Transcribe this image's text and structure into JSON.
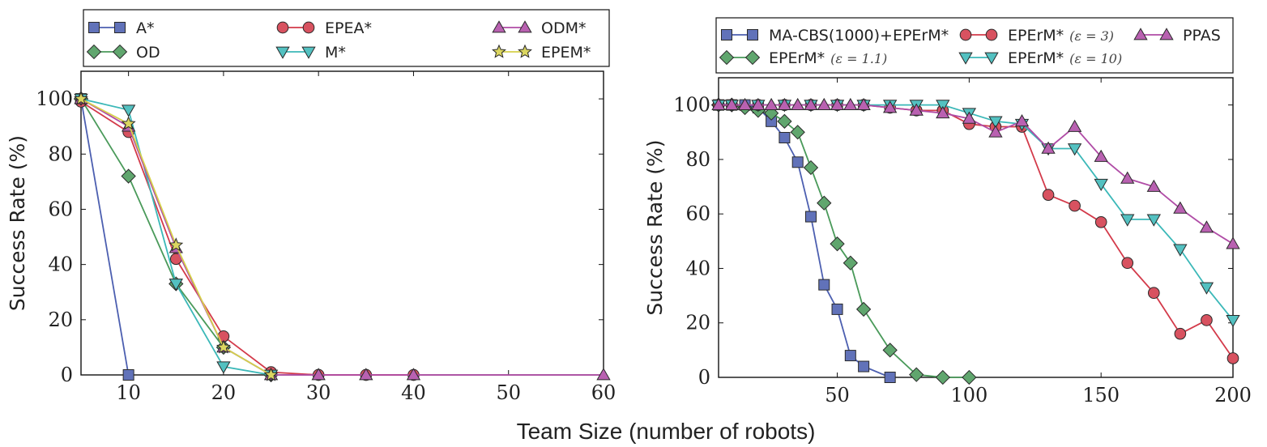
{
  "xlabel": "Team Size (number of robots)",
  "chart_data": [
    {
      "type": "line",
      "ylabel": "Success Rate (%)",
      "xlim": [
        5,
        60
      ],
      "ylim": [
        0,
        110
      ],
      "xticks": [
        10,
        20,
        30,
        40,
        50,
        60
      ],
      "yticks": [
        0,
        20,
        40,
        60,
        80,
        100
      ],
      "grid": false,
      "legend_position": "top",
      "series": [
        {
          "name": "A*",
          "color": "#4c5fb0",
          "marker": "square",
          "x": [
            5,
            10
          ],
          "values": [
            100,
            0
          ]
        },
        {
          "name": "OD",
          "color": "#4a9a5a",
          "marker": "diamond",
          "x": [
            5,
            10,
            15,
            20,
            25
          ],
          "values": [
            100,
            72,
            33,
            10,
            0
          ]
        },
        {
          "name": "EPEA*",
          "color": "#d33a4a",
          "marker": "circle",
          "x": [
            5,
            10,
            15,
            20,
            25,
            30,
            35,
            40
          ],
          "values": [
            99,
            88,
            42,
            14,
            1,
            0,
            0,
            0
          ]
        },
        {
          "name": "M*",
          "color": "#3bb8b8",
          "marker": "triangle-down",
          "x": [
            5,
            10,
            15,
            20,
            25
          ],
          "values": [
            100,
            96,
            33,
            3,
            0
          ]
        },
        {
          "name": "ODM*",
          "color": "#b04ca6",
          "marker": "triangle-up",
          "x": [
            5,
            10,
            15,
            20,
            25,
            30,
            35,
            40,
            60
          ],
          "values": [
            100,
            90,
            46,
            10,
            0,
            0,
            0,
            0,
            0
          ]
        },
        {
          "name": "EPEM*",
          "color": "#d6d04a",
          "marker": "star",
          "x": [
            5,
            10,
            15,
            20,
            25
          ],
          "values": [
            100,
            91,
            47,
            10,
            0
          ]
        }
      ]
    },
    {
      "type": "line",
      "ylabel": "Success Rate (%)",
      "xlim": [
        5,
        200
      ],
      "ylim": [
        0,
        110
      ],
      "xticks": [
        50,
        100,
        150,
        200
      ],
      "yticks": [
        0,
        20,
        40,
        60,
        80,
        100
      ],
      "grid": false,
      "legend_position": "top",
      "series": [
        {
          "name": "MA-CBS(1000)+EPErM*",
          "sub": "",
          "color": "#4c5fb0",
          "marker": "square",
          "x": [
            5,
            10,
            15,
            20,
            25,
            30,
            35,
            40,
            45,
            50,
            55,
            60,
            70
          ],
          "values": [
            100,
            100,
            100,
            99,
            94,
            88,
            79,
            59,
            34,
            25,
            8,
            4,
            0
          ]
        },
        {
          "name": "EPErM*",
          "sub": "(ε = 1.1)",
          "color": "#4a9a5a",
          "marker": "diamond",
          "x": [
            5,
            10,
            15,
            20,
            25,
            30,
            35,
            40,
            45,
            50,
            55,
            60,
            70,
            80,
            90,
            100
          ],
          "values": [
            100,
            100,
            99,
            98,
            97,
            94,
            90,
            77,
            64,
            49,
            42,
            25,
            10,
            1,
            0,
            0
          ]
        },
        {
          "name": "EPErM*",
          "sub": "(ε = 3)",
          "color": "#d33a4a",
          "marker": "circle",
          "x": [
            5,
            10,
            20,
            30,
            40,
            50,
            60,
            70,
            80,
            90,
            100,
            110,
            120,
            130,
            140,
            150,
            160,
            170,
            180,
            190,
            200
          ],
          "values": [
            100,
            100,
            100,
            100,
            100,
            100,
            100,
            99,
            98,
            98,
            93,
            92,
            92,
            67,
            63,
            57,
            42,
            31,
            16,
            21,
            7
          ]
        },
        {
          "name": "EPErM*",
          "sub": "(ε = 10)",
          "color": "#3bb8b8",
          "marker": "triangle-down",
          "x": [
            5,
            10,
            20,
            30,
            40,
            50,
            60,
            70,
            80,
            90,
            100,
            110,
            120,
            130,
            140,
            150,
            160,
            170,
            180,
            190,
            200
          ],
          "values": [
            100,
            100,
            100,
            100,
            100,
            100,
            100,
            100,
            100,
            100,
            97,
            94,
            93,
            84,
            84,
            71,
            58,
            58,
            47,
            33,
            21
          ]
        },
        {
          "name": "PPAS",
          "sub": "",
          "color": "#b04ca6",
          "marker": "triangle-up",
          "x": [
            5,
            10,
            15,
            20,
            25,
            30,
            35,
            40,
            45,
            50,
            55,
            60,
            70,
            80,
            90,
            100,
            110,
            120,
            130,
            140,
            150,
            160,
            170,
            180,
            190,
            200
          ],
          "values": [
            100,
            100,
            100,
            100,
            100,
            100,
            100,
            100,
            100,
            100,
            100,
            100,
            99,
            98,
            97,
            95,
            90,
            94,
            84,
            92,
            81,
            73,
            70,
            62,
            55,
            49
          ]
        }
      ]
    }
  ]
}
